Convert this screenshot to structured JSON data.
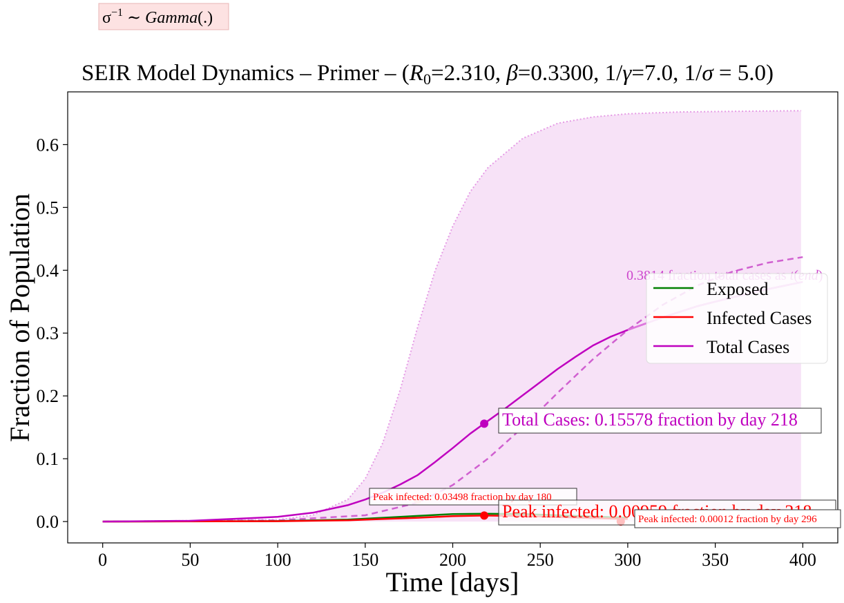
{
  "note_box": {
    "sigma": "σ",
    "sup": "−1",
    "tilde": " ∼ ",
    "dist": "Gamma",
    "paren": "(.)"
  },
  "colors": {
    "exposed": "#008000",
    "infected": "#ff0000",
    "total": "#bf00bf",
    "total_light": "#dd77dd",
    "band": "#f3d6f3",
    "band_edge": "#e59be5",
    "note_bg": "#fde2e2",
    "note_border": "#e8b4b4"
  },
  "chart_data": {
    "type": "line",
    "title_parts": {
      "prefix": "SEIR Model Dynamics – Primer – (",
      "r0_sym": "R",
      "r0_sub": "0",
      "r0_val": "=2.310, ",
      "beta_sym": "β",
      "beta_val": "=0.3300, 1/",
      "gamma_sym": "γ",
      "gamma_val": "=7.0, 1/",
      "sigma_sym": "σ",
      "sigma_val": " = 5.0)"
    },
    "xlabel": "Time [days]",
    "ylabel": "Fraction of Population",
    "xlim": [
      -20,
      420
    ],
    "ylim": [
      -0.034,
      0.684
    ],
    "xticks": [
      0,
      50,
      100,
      150,
      200,
      250,
      300,
      350,
      400
    ],
    "xtick_labels": [
      "0",
      "50",
      "100",
      "150",
      "200",
      "250",
      "300",
      "350",
      "400"
    ],
    "yticks": [
      0.0,
      0.1,
      0.2,
      0.3,
      0.4,
      0.5,
      0.6
    ],
    "ytick_labels": [
      "0.0",
      "0.1",
      "0.2",
      "0.3",
      "0.4",
      "0.5",
      "0.6"
    ],
    "legend": {
      "position": "center-right",
      "entries": [
        {
          "label": "Exposed",
          "color": "#008000"
        },
        {
          "label": "Infected Cases",
          "color": "#ff0000"
        },
        {
          "label": "Total Cases",
          "color": "#bf00bf"
        }
      ]
    },
    "series": [
      {
        "name": "Total Cases",
        "color": "#bf00bf",
        "x": [
          0,
          50,
          100,
          120,
          140,
          150,
          160,
          170,
          180,
          190,
          200,
          210,
          218,
          230,
          240,
          250,
          260,
          270,
          280,
          290,
          300,
          320,
          340,
          360,
          380,
          400
        ],
        "y": [
          0.0,
          0.0012,
          0.0075,
          0.014,
          0.026,
          0.035,
          0.046,
          0.059,
          0.074,
          0.095,
          0.117,
          0.14,
          0.156,
          0.18,
          0.201,
          0.222,
          0.243,
          0.262,
          0.28,
          0.294,
          0.305,
          0.325,
          0.343,
          0.357,
          0.37,
          0.3814
        ]
      },
      {
        "name": "Exposed",
        "color": "#008000",
        "x": [
          0,
          100,
          140,
          160,
          180,
          200,
          218,
          240,
          260,
          280,
          300
        ],
        "y": [
          0.0,
          0.0008,
          0.003,
          0.006,
          0.009,
          0.012,
          0.0125,
          0.012,
          0.01,
          0.008,
          0.006
        ]
      },
      {
        "name": "Infected Cases",
        "color": "#ff0000",
        "x": [
          0,
          100,
          140,
          160,
          180,
          200,
          218,
          240,
          260,
          280,
          300
        ],
        "y": [
          0.0,
          0.0005,
          0.002,
          0.004,
          0.006,
          0.0085,
          0.00959,
          0.0088,
          0.0072,
          0.0055,
          0.0042
        ]
      },
      {
        "name": "Total Cases (dashed)",
        "color": "#d060d0",
        "x": [
          0,
          100,
          150,
          180,
          200,
          220,
          240,
          260,
          280,
          300,
          320,
          340,
          360,
          380,
          400
        ],
        "y": [
          0.0,
          0.002,
          0.01,
          0.03,
          0.058,
          0.1,
          0.15,
          0.205,
          0.258,
          0.305,
          0.345,
          0.376,
          0.398,
          0.412,
          0.421
        ]
      },
      {
        "name": "Total Cases (upper bound)",
        "color": "#e59be5",
        "x": [
          0,
          100,
          120,
          140,
          150,
          160,
          170,
          180,
          190,
          200,
          210,
          220,
          240,
          260,
          280,
          300,
          330,
          360,
          399
        ],
        "y": [
          0.0,
          0.003,
          0.01,
          0.035,
          0.068,
          0.125,
          0.21,
          0.31,
          0.4,
          0.47,
          0.525,
          0.563,
          0.61,
          0.634,
          0.644,
          0.649,
          0.652,
          0.653,
          0.654
        ]
      }
    ],
    "band": {
      "x": [
        0,
        100,
        120,
        140,
        150,
        160,
        170,
        180,
        190,
        200,
        210,
        220,
        240,
        260,
        280,
        300,
        330,
        360,
        399
      ],
      "upper": [
        0.0,
        0.003,
        0.01,
        0.035,
        0.068,
        0.125,
        0.21,
        0.31,
        0.4,
        0.47,
        0.525,
        0.563,
        0.61,
        0.634,
        0.644,
        0.649,
        0.652,
        0.653,
        0.654
      ],
      "lower": [
        0.0,
        0.0,
        0.0,
        0.0,
        0.0,
        0.0,
        0.0,
        0.0,
        0.0,
        0.0,
        0.0,
        0.0,
        0.0,
        0.0,
        0.0,
        0.0,
        0.0,
        0.0,
        0.0
      ]
    },
    "markers": [
      {
        "name": "total-peak",
        "x": 218,
        "y": 0.15578,
        "color": "#bf00bf"
      },
      {
        "name": "infected-peak",
        "x": 218,
        "y": 0.00959,
        "color": "#ff0000"
      },
      {
        "name": "infected-peak-early",
        "x": 180,
        "y": 0.03498,
        "color": "#ffaaaa"
      },
      {
        "name": "infected-peak-late",
        "x": 296,
        "y": 0.00012,
        "color": "#ff0000"
      }
    ],
    "annotations": {
      "total_cases": "Total Cases: 0.15578 fraction by day 218",
      "peak_main": "Peak infected: 0.00959 fraction by day 218",
      "peak_early": "Peak infected: 0.03498 fraction by day 180",
      "peak_late": "Peak infected: 0.00012 fraction by day 296",
      "end_text": "0.3814 fraction total cases as ",
      "end_t": "t",
      "end_open": "(",
      "end_var": "end",
      "end_close": ")"
    }
  }
}
